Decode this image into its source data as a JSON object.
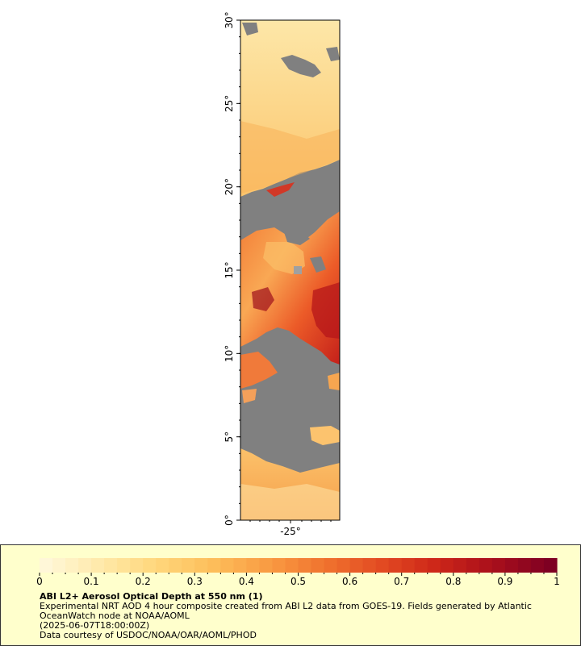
{
  "map": {
    "lat_labels": [
      "0°",
      "5°",
      "10°",
      "15°",
      "20°",
      "25°",
      "30°"
    ],
    "lon_labels": [
      "-25°"
    ],
    "lat_range": [
      0,
      30
    ],
    "colors": {
      "no_data": "#808080",
      "land_edge": "#a0a0a0"
    }
  },
  "legend": {
    "title": "ABI L2+ Aerosol Optical Depth at 550 nm (1)",
    "description": "Experimental NRT AOD 4 hour composite created from ABI L2 data from GOES-19. Fields generated by Atlantic OceanWatch node at NOAA/AOML",
    "timestamp": "(2025-06-07T18:00:00Z)",
    "credit": "Data courtesy of USDOC/NOAA/OAR/AOML/PHOD",
    "scale_labels": [
      "0",
      "0.1",
      "0.2",
      "0.3",
      "0.4",
      "0.5",
      "0.6",
      "0.7",
      "0.8",
      "0.9",
      "1"
    ],
    "scale_range": [
      0,
      1
    ],
    "colors": [
      "#fff7d8",
      "#ffe9a8",
      "#ffd67a",
      "#fdbd5a",
      "#f99a42",
      "#f0722e",
      "#e24a22",
      "#cc2518",
      "#a80f1c",
      "#7e0022"
    ]
  }
}
